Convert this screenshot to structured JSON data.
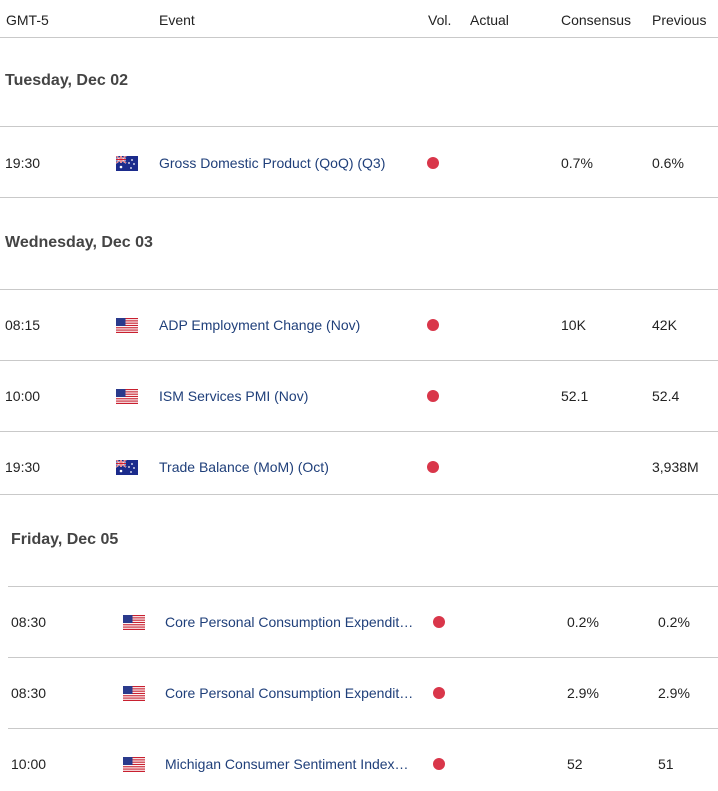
{
  "header": {
    "timezone": "GMT-5",
    "event": "Event",
    "vol": "Vol.",
    "actual": "Actual",
    "consensus": "Consensus",
    "previous": "Previous"
  },
  "days": [
    {
      "label": "Tuesday, Dec 02"
    },
    {
      "label": "Wednesday, Dec 03"
    },
    {
      "label": "Friday, Dec 05"
    }
  ],
  "rows": [
    {
      "time": "19:30",
      "country": "australia-flag-icon",
      "event": "Gross Domestic Product (QoQ) (Q3)",
      "actual": "",
      "consensus": "0.7%",
      "previous": "0.6%"
    },
    {
      "time": "08:15",
      "country": "us-flag-icon",
      "event": "ADP Employment Change (Nov)",
      "actual": "",
      "consensus": "10K",
      "previous": "42K"
    },
    {
      "time": "10:00",
      "country": "us-flag-icon",
      "event": "ISM Services PMI (Nov)",
      "actual": "",
      "consensus": "52.1",
      "previous": "52.4"
    },
    {
      "time": "19:30",
      "country": "australia-flag-icon",
      "event": "Trade Balance (MoM) (Oct)",
      "actual": "",
      "consensus": "",
      "previous": "3,938M"
    },
    {
      "time": "08:30",
      "country": "us-flag-icon",
      "event": "Core Personal Consumption Expendit…",
      "actual": "",
      "consensus": "0.2%",
      "previous": "0.2%"
    },
    {
      "time": "08:30",
      "country": "us-flag-icon",
      "event": "Core Personal Consumption Expendit…",
      "actual": "",
      "consensus": "2.9%",
      "previous": "2.9%"
    },
    {
      "time": "10:00",
      "country": "us-flag-icon",
      "event": "Michigan Consumer Sentiment Index…",
      "actual": "",
      "consensus": "52",
      "previous": "51"
    }
  ],
  "colors": {
    "volatility_high": "#d9364a",
    "event_link": "#1f3f7a",
    "divider": "#c9c9c9"
  }
}
